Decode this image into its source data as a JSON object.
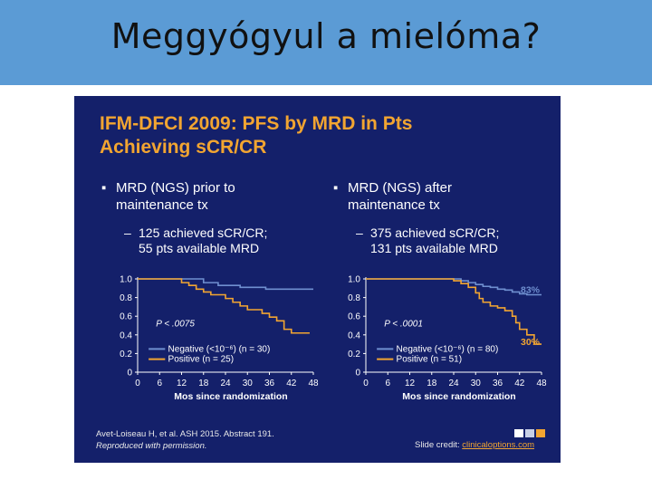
{
  "page": {
    "title": "Meggyógyul a mielóma?"
  },
  "slide": {
    "title_line1": "IFM-DFCI 2009: PFS by MRD in Pts",
    "title_line2": "Achieving sCR/CR",
    "left": {
      "bullet_line1": "MRD (NGS) prior to",
      "bullet_line2": "maintenance tx",
      "sub_line1": "125 achieved sCR/CR;",
      "sub_line2": "55 pts available MRD"
    },
    "right": {
      "bullet_line1": "MRD (NGS) after",
      "bullet_line2": "maintenance tx",
      "sub_line1": "375 achieved sCR/CR;",
      "sub_line2": "131 pts available MRD"
    },
    "bullet_glyph": "▪",
    "dash_glyph": "–",
    "citation_line1": "Avet-Loiseau H, et al. ASH 2015. Abstract 191.",
    "citation_line2": "Reproduced with permission.",
    "credit_prefix": "Slide credit: ",
    "credit_link": "clinicaloptions.com",
    "colors": {
      "background": "#14206a",
      "title": "#f2a531",
      "negative": "#6f8fd0",
      "positive": "#f2a531",
      "topbar": "#5b9bd5"
    }
  },
  "chart_data": [
    {
      "type": "line",
      "xlabel": "Mos since randomization",
      "ylabel": "",
      "x_ticks": [
        0,
        6,
        12,
        18,
        24,
        30,
        36,
        42,
        48
      ],
      "y_ticks": [
        "1.0",
        "0.8",
        "0.6",
        "0.4",
        "0.2",
        "0"
      ],
      "xlim": [
        0,
        48
      ],
      "ylim": [
        0,
        1
      ],
      "p_value": "P < .0075",
      "legend_position": "bottom-left",
      "series": [
        {
          "name": "Negative (<10⁻⁶) (n = 30)",
          "color": "#6f8fd0",
          "x": [
            0,
            13,
            18,
            22,
            28,
            35,
            48
          ],
          "y": [
            1.0,
            1.0,
            0.96,
            0.93,
            0.91,
            0.89,
            0.89
          ]
        },
        {
          "name": "Positive (n = 25)",
          "color": "#f2a531",
          "x": [
            0,
            10,
            12,
            14,
            16,
            18,
            20,
            24,
            26,
            28,
            30,
            34,
            36,
            38,
            40,
            42,
            44,
            47
          ],
          "y": [
            1.0,
            1.0,
            0.96,
            0.93,
            0.89,
            0.86,
            0.83,
            0.79,
            0.75,
            0.71,
            0.67,
            0.63,
            0.59,
            0.55,
            0.46,
            0.42,
            0.42,
            0.42
          ]
        }
      ]
    },
    {
      "type": "line",
      "xlabel": "Mos since randomization",
      "ylabel": "",
      "x_ticks": [
        0,
        6,
        12,
        18,
        24,
        30,
        36,
        42,
        48
      ],
      "y_ticks": [
        "1.0",
        "0.8",
        "0.6",
        "0.4",
        "0.2",
        "0"
      ],
      "xlim": [
        0,
        48
      ],
      "ylim": [
        0,
        1
      ],
      "p_value": "P < .0001",
      "legend_position": "bottom-left",
      "annotations": [
        {
          "text": "83%",
          "color": "#6f8fd0"
        },
        {
          "text": "30%",
          "color": "#f2a531"
        }
      ],
      "series": [
        {
          "name": "Negative (<10⁻⁶) (n = 80)",
          "color": "#6f8fd0",
          "x": [
            0,
            22,
            26,
            28,
            30,
            32,
            34,
            36,
            38,
            40,
            42,
            44,
            46,
            48
          ],
          "y": [
            1.0,
            1.0,
            0.98,
            0.96,
            0.94,
            0.92,
            0.91,
            0.89,
            0.88,
            0.86,
            0.84,
            0.83,
            0.83,
            0.83
          ]
        },
        {
          "name": "Positive (n = 51)",
          "color": "#f2a531",
          "x": [
            0,
            20,
            24,
            26,
            28,
            30,
            31,
            32,
            34,
            36,
            38,
            40,
            41,
            42,
            44,
            46,
            48
          ],
          "y": [
            1.0,
            1.0,
            0.98,
            0.95,
            0.91,
            0.85,
            0.79,
            0.75,
            0.71,
            0.69,
            0.66,
            0.6,
            0.53,
            0.46,
            0.4,
            0.3,
            0.3
          ]
        }
      ]
    }
  ]
}
